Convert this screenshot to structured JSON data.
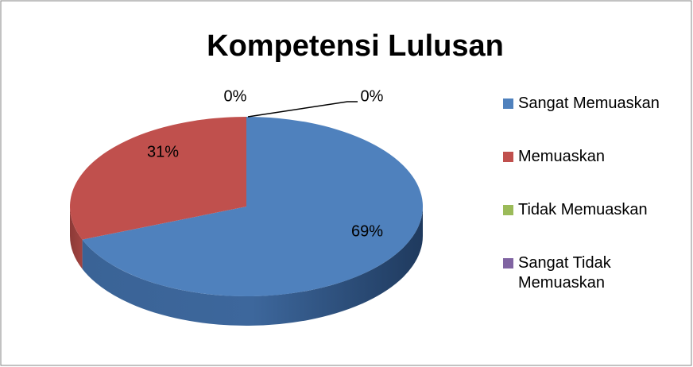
{
  "chart_data": {
    "type": "pie3d",
    "title": "Kompetensi Lulusan",
    "categories": [
      "Sangat Memuaskan",
      "Memuaskan",
      "Tidak Memuaskan",
      "Sangat Tidak Memuaskan"
    ],
    "values": [
      69,
      31,
      0,
      0
    ],
    "value_labels": [
      "69%",
      "31%",
      "0%",
      "0%"
    ],
    "colors": [
      "#4f81bd",
      "#c0504d",
      "#9bbb59",
      "#8064a2"
    ],
    "legend": "right"
  }
}
